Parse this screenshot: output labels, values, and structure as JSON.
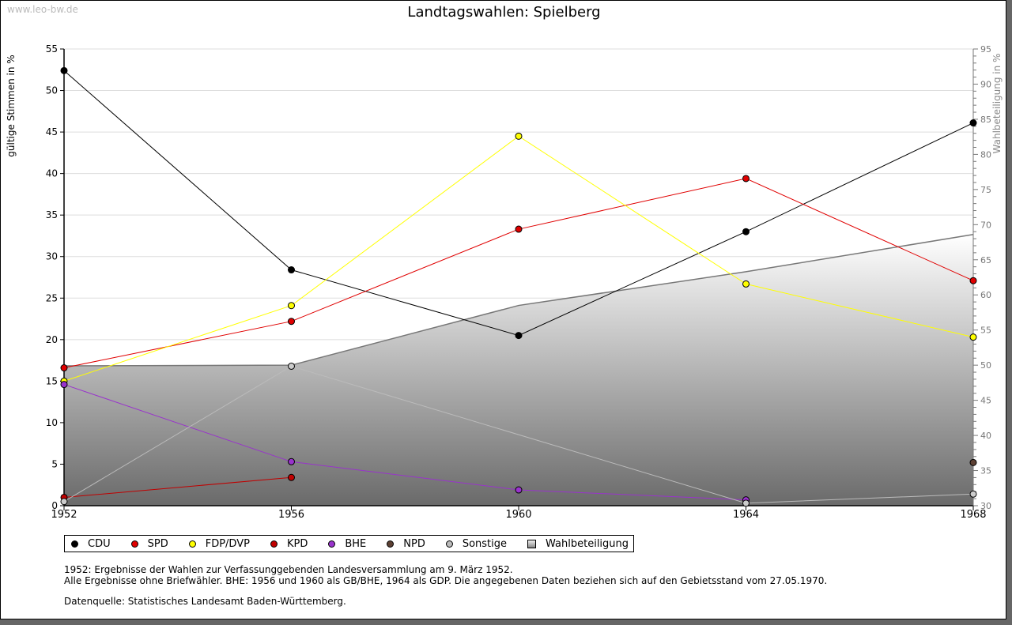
{
  "watermark": "www.leo-bw.de",
  "chart_data": {
    "type": "line",
    "title": "Landtagswahlen: Spielberg",
    "x": [
      1952,
      1956,
      1960,
      1964,
      1968
    ],
    "xticks": [
      "1952",
      "1956",
      "1960",
      "1964",
      "1968"
    ],
    "ylabel": "gültige Stimmen in %",
    "ylim": [
      0,
      55
    ],
    "yticks": [
      "0",
      "5",
      "10",
      "15",
      "20",
      "25",
      "30",
      "35",
      "40",
      "45",
      "50",
      "55"
    ],
    "y2label": "Wahlbeteiligung in %",
    "y2lim": [
      30,
      95
    ],
    "y2ticks": [
      "30",
      "35",
      "40",
      "45",
      "50",
      "55",
      "60",
      "65",
      "70",
      "75",
      "80",
      "85",
      "90",
      "95"
    ],
    "grid": true,
    "legend_position": "bottom",
    "series": [
      {
        "name": "CDU",
        "color": "#000000",
        "values": [
          52.4,
          28.4,
          20.5,
          33.0,
          46.1
        ]
      },
      {
        "name": "SPD",
        "color": "#e00000",
        "values": [
          16.6,
          22.2,
          33.3,
          39.4,
          27.1
        ]
      },
      {
        "name": "FDP/DVP",
        "color": "#ffff00",
        "values": [
          15.0,
          24.1,
          44.5,
          26.7,
          20.3
        ]
      },
      {
        "name": "KPD",
        "color": "#c00000",
        "values": [
          1.0,
          3.4,
          null,
          null,
          null
        ]
      },
      {
        "name": "BHE",
        "color": "#9933cc",
        "values": [
          14.6,
          5.3,
          1.9,
          0.7,
          null
        ]
      },
      {
        "name": "NPD",
        "color": "#5c4033",
        "values": [
          null,
          null,
          null,
          null,
          5.2
        ]
      },
      {
        "name": "Sonstige",
        "color": "#bbbbbb",
        "values": [
          0.5,
          16.8,
          null,
          0.3,
          1.4
        ]
      }
    ],
    "area_series": {
      "name": "Wahlbeteiligung",
      "axis": "right",
      "values": [
        49.9,
        50.0,
        58.5,
        63.3,
        68.6
      ]
    }
  },
  "notes": [
    "1952: Ergebnisse der Wahlen zur Verfassunggebenden Landesversammlung am 9. März 1952.",
    "Alle Ergebnisse ohne Briefwähler. BHE: 1956 und 1960 als GB/BHE, 1964 als GDP. Die angegebenen Daten beziehen sich auf den Gebietsstand vom 27.05.1970."
  ],
  "source": "Datenquelle: Statistisches Landesamt Baden-Württemberg."
}
